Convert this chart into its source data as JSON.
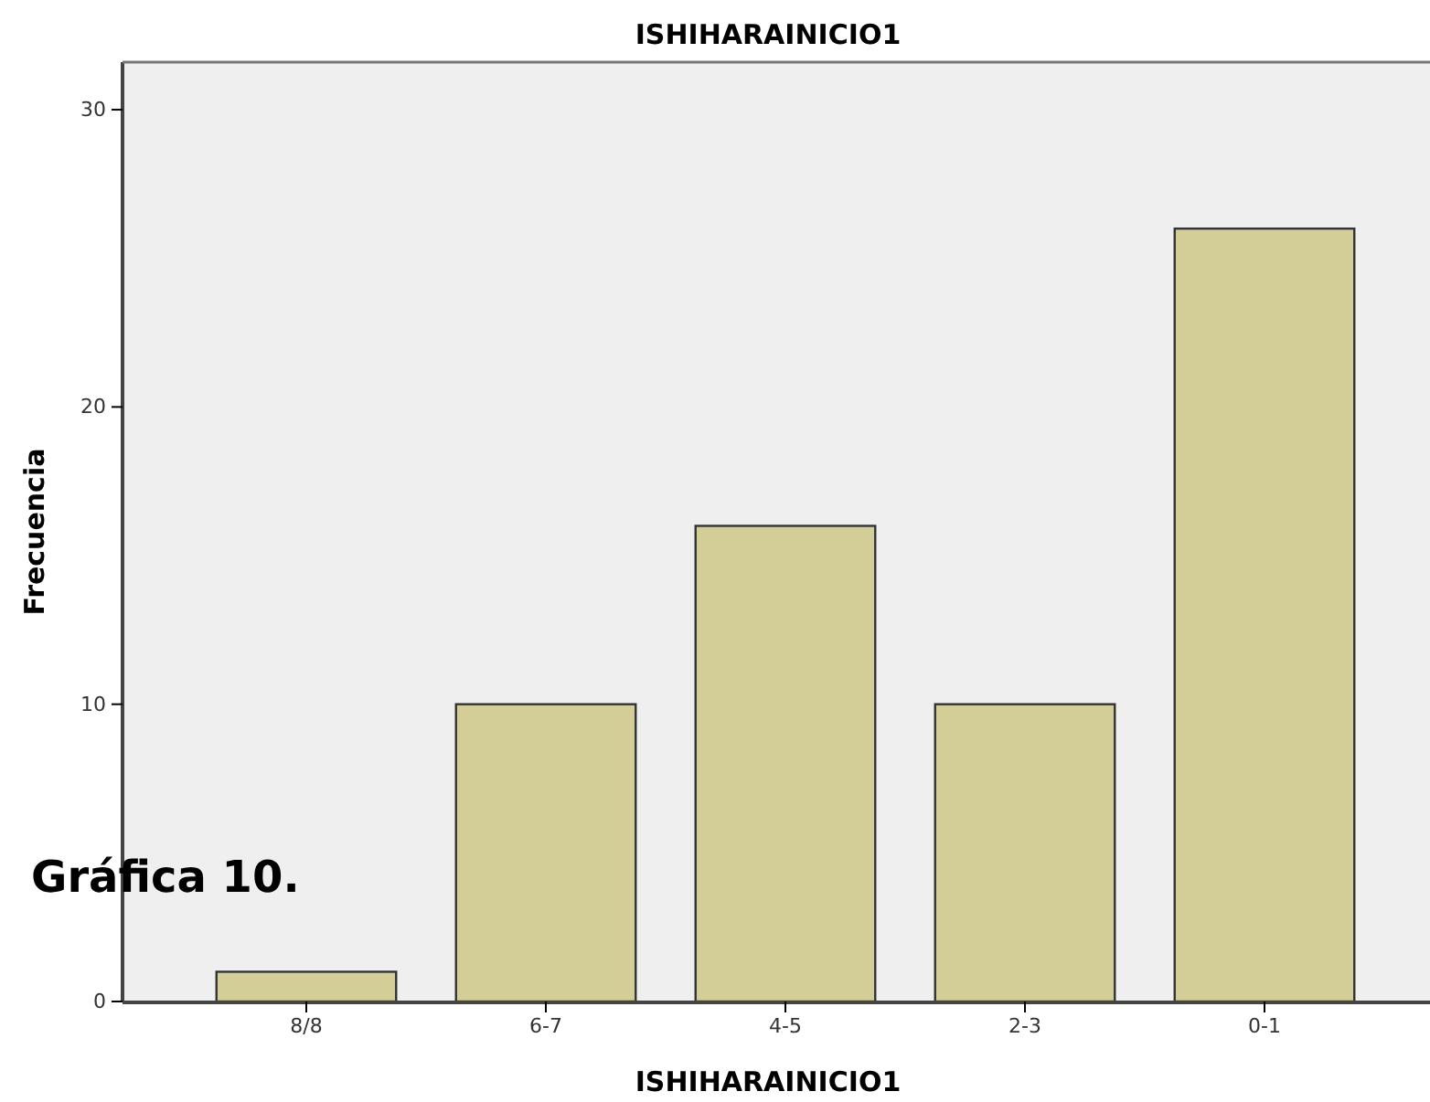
{
  "chart_data": {
    "type": "bar",
    "title": "ISHIHARAINICIO1",
    "xlabel": "ISHIHARAINICIO1",
    "ylabel": "Frecuencia",
    "categories": [
      "8/8",
      "6-7",
      "4-5",
      "2-3",
      "0-1"
    ],
    "values": [
      1,
      10,
      16,
      10,
      26
    ],
    "color": "#d3ce97",
    "ylim": [
      0,
      31.6
    ],
    "yticks": [
      0,
      10,
      20,
      30
    ],
    "grid": false,
    "annotations": [
      "Gráfica 10."
    ]
  }
}
